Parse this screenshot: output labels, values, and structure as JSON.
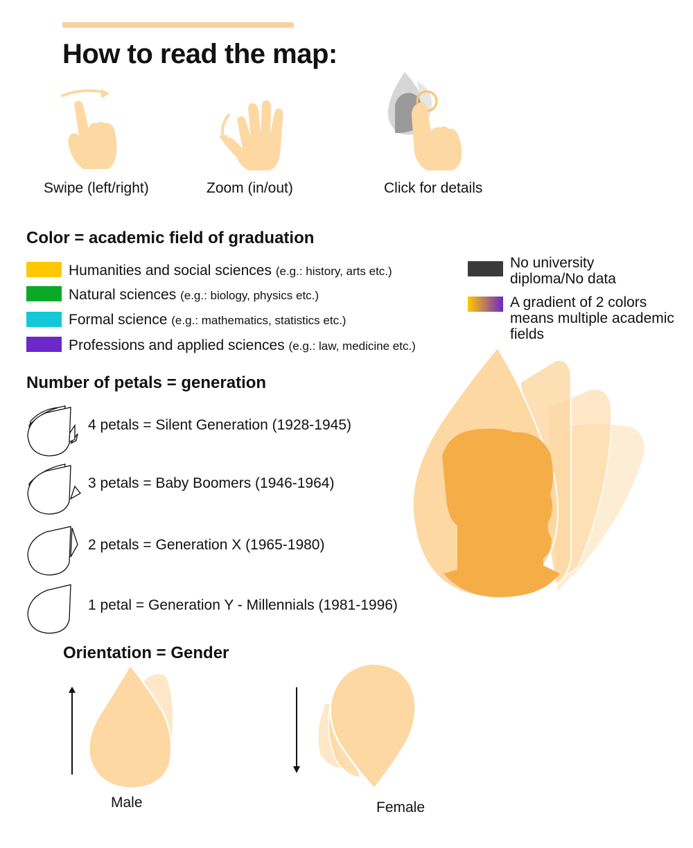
{
  "header": {
    "title": "How to read the map:"
  },
  "gestures": [
    {
      "label": "Swipe (left/right)",
      "icon": "swipe-hand-icon"
    },
    {
      "label": "Zoom (in/out)",
      "icon": "pinch-zoom-hand-icon"
    },
    {
      "label": "Click for details",
      "icon": "tap-hand-icon"
    }
  ],
  "color_section": {
    "title": "Color = academic field of graduation",
    "items": [
      {
        "label": "Humanities and social sciences",
        "example": "(e.g.: history, arts etc.)",
        "color": "#ffc800"
      },
      {
        "label": "Natural sciences",
        "example": "(e.g.: biology, physics etc.)",
        "color": "#0aaa28"
      },
      {
        "label": "Formal science",
        "example": "(e.g.: mathematics, statistics etc.)",
        "color": "#14c8d8"
      },
      {
        "label": "Professions and applied sciences",
        "example": "(e.g.: law, medicine etc.)",
        "color": "#6c28c8"
      }
    ],
    "no_data": {
      "label": "No university diploma/No data",
      "color": "#3a3a3a"
    },
    "gradient": {
      "label": "A gradient of 2 colors means multiple academic fields",
      "from": "#ffc800",
      "to": "#6c28c8"
    }
  },
  "petal_section": {
    "title": "Number of petals = generation",
    "items": [
      {
        "petals": 4,
        "label": "4 petals = Silent Generation (1928-1945)"
      },
      {
        "petals": 3,
        "label": "3 petals = Baby Boomers (1946-1964)"
      },
      {
        "petals": 2,
        "label": "2 petals = Generation X (1965-1980)"
      },
      {
        "petals": 1,
        "label": "1 petal = Generation Y - Millennials (1981-1996)"
      }
    ]
  },
  "orientation_section": {
    "title": "Orientation = Gender",
    "male": {
      "label": "Male",
      "direction": "up"
    },
    "female": {
      "label": "Female",
      "direction": "down"
    }
  },
  "colors": {
    "petal": "#fdd8a2",
    "accent": "#f5ad48",
    "bar": "#fbd0a0"
  }
}
